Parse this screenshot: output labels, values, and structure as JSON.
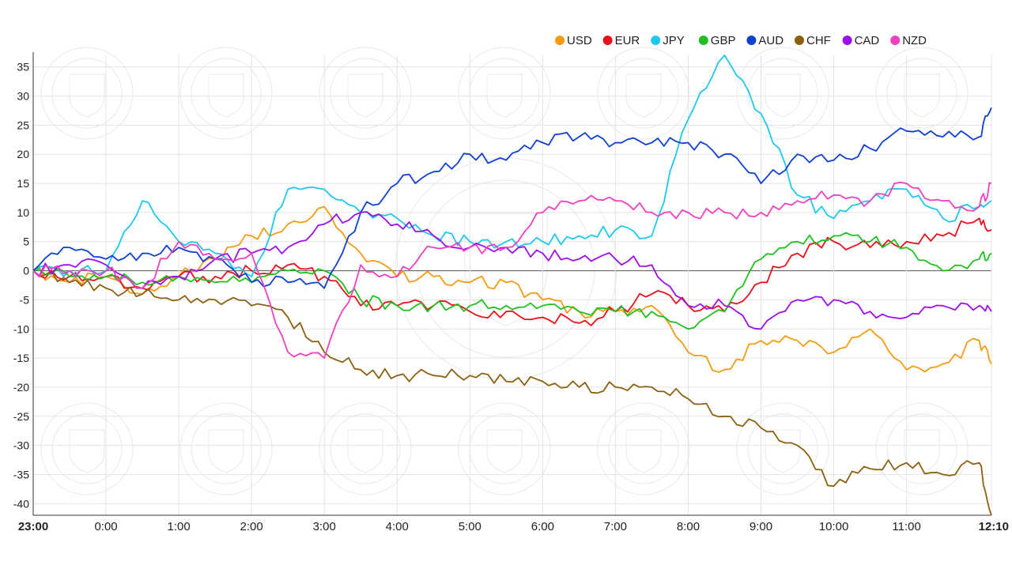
{
  "chart_data": {
    "type": "line",
    "title": "",
    "xlabel": "",
    "ylabel": "",
    "ylim": [
      -42,
      37
    ],
    "xlim": [
      0,
      13.1667
    ],
    "grid": true,
    "legend_position": "top-right",
    "x_ticks": [
      {
        "x": 0,
        "label": "23:00",
        "bold": true
      },
      {
        "x": 1,
        "label": "0:00"
      },
      {
        "x": 2,
        "label": "1:00"
      },
      {
        "x": 3,
        "label": "2:00"
      },
      {
        "x": 4,
        "label": "3:00"
      },
      {
        "x": 5,
        "label": "4:00"
      },
      {
        "x": 6,
        "label": "5:00"
      },
      {
        "x": 7,
        "label": "6:00"
      },
      {
        "x": 8,
        "label": "7:00"
      },
      {
        "x": 9,
        "label": "8:00"
      },
      {
        "x": 10,
        "label": "9:00"
      },
      {
        "x": 11,
        "label": "10:00"
      },
      {
        "x": 12,
        "label": "11:00"
      },
      {
        "x": 13.1667,
        "label": "12:10",
        "bold": true
      }
    ],
    "y_ticks": [
      35,
      30,
      25,
      20,
      15,
      10,
      5,
      0,
      -5,
      -10,
      -15,
      -20,
      -25,
      -30,
      -35,
      -40
    ],
    "x": [
      0,
      0.5,
      1,
      1.5,
      2,
      2.5,
      3,
      3.5,
      4,
      4.5,
      5,
      5.5,
      6,
      6.5,
      7,
      7.5,
      8,
      8.5,
      9,
      9.5,
      10,
      10.5,
      11,
      11.5,
      12,
      12.5,
      13,
      13.1667
    ],
    "series": [
      {
        "name": "USD",
        "color": "#f39c12",
        "values": [
          0,
          -2,
          -1,
          -4,
          -1,
          2,
          6,
          8,
          11,
          3,
          -1,
          -1,
          -2,
          -2,
          -5,
          -7,
          -7,
          -6,
          -14,
          -17,
          -12,
          -12,
          -14,
          -10,
          -17,
          -16,
          -12,
          -16
        ]
      },
      {
        "name": "EUR",
        "color": "#e8101a",
        "values": [
          0,
          -1,
          -1,
          -3,
          -1,
          -1,
          0,
          1,
          -1,
          -6,
          -6,
          -6,
          -7,
          -7,
          -8,
          -9,
          -7,
          -4,
          -6,
          -7,
          -2,
          3,
          5,
          4,
          5,
          6,
          9,
          7
        ]
      },
      {
        "name": "JPY",
        "color": "#1ec8ec",
        "values": [
          0,
          0,
          0,
          12,
          5,
          3,
          -1,
          14,
          14,
          10,
          9,
          6,
          5,
          5,
          5,
          6,
          7,
          6,
          26,
          37,
          27,
          13,
          9,
          12,
          14,
          9,
          11,
          12
        ]
      },
      {
        "name": "GBP",
        "color": "#20c020",
        "values": [
          0,
          -1,
          -1,
          -2,
          -1,
          -2,
          -2,
          0,
          0,
          -5,
          -6,
          -6,
          -6,
          -6,
          -6,
          -7,
          -7,
          -7,
          -10,
          -7,
          2,
          5,
          6,
          5,
          4,
          0,
          2,
          3
        ]
      },
      {
        "name": "AUD",
        "color": "#1040d0",
        "values": [
          0,
          4,
          2,
          3,
          4,
          2,
          -2,
          -2,
          -3,
          10,
          15,
          17,
          20,
          19,
          22,
          23,
          22,
          22,
          22,
          20,
          15,
          20,
          19,
          21,
          24,
          23,
          23,
          28
        ]
      },
      {
        "name": "CHF",
        "color": "#8b6010",
        "values": [
          0,
          -2,
          -3,
          -4,
          -5,
          -5,
          -6,
          -8,
          -14,
          -17,
          -18,
          -18,
          -18,
          -19,
          -19,
          -20,
          -20,
          -20,
          -22,
          -25,
          -27,
          -30,
          -37,
          -34,
          -33,
          -35,
          -33,
          -42
        ]
      },
      {
        "name": "CAD",
        "color": "#9b10e8",
        "values": [
          0,
          1,
          1,
          -3,
          -1,
          2,
          3,
          4,
          8,
          10,
          8,
          6,
          4,
          4,
          3,
          2,
          2,
          1,
          -6,
          -6,
          -10,
          -5,
          -5,
          -7,
          -8,
          -6,
          -6,
          -7
        ]
      },
      {
        "name": "NZD",
        "color": "#f040c0",
        "values": [
          0,
          0,
          0,
          -3,
          5,
          2,
          3,
          -14,
          -15,
          1,
          -1,
          4,
          4,
          4,
          10,
          12,
          12,
          10,
          10,
          10,
          10,
          12,
          13,
          12,
          15,
          12,
          11,
          15
        ]
      }
    ]
  }
}
